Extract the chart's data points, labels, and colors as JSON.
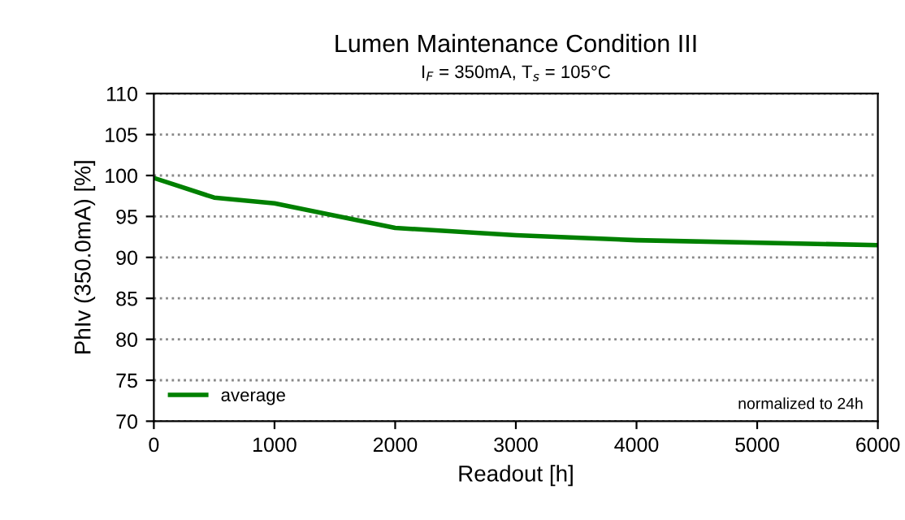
{
  "chart_data": {
    "type": "line",
    "title": "Lumen Maintenance Condition III",
    "subtitle": "I$_{F}$ = 350mA, T$_{s}$ = 105°C",
    "xlabel": "Readout [h]",
    "ylabel": "PhIv (350.0mA) [%]",
    "x": [
      0,
      168,
      500,
      1000,
      2000,
      3000,
      4000,
      6000
    ],
    "series": [
      {
        "name": "average",
        "color": "#008000",
        "values": [
          99.7,
          98.9,
          97.3,
          96.6,
          93.6,
          92.7,
          92.1,
          91.5
        ]
      }
    ],
    "xlim": [
      0,
      6000
    ],
    "xticks": [
      0,
      1000,
      2000,
      3000,
      4000,
      5000,
      6000
    ],
    "ylim": [
      70,
      110
    ],
    "yticks": [
      70,
      75,
      80,
      85,
      90,
      95,
      100,
      105,
      110
    ],
    "grid": "y",
    "legend": "bottom left",
    "marker": "none",
    "line_style": "solid",
    "annotations": [
      "normalized to 24h"
    ]
  }
}
